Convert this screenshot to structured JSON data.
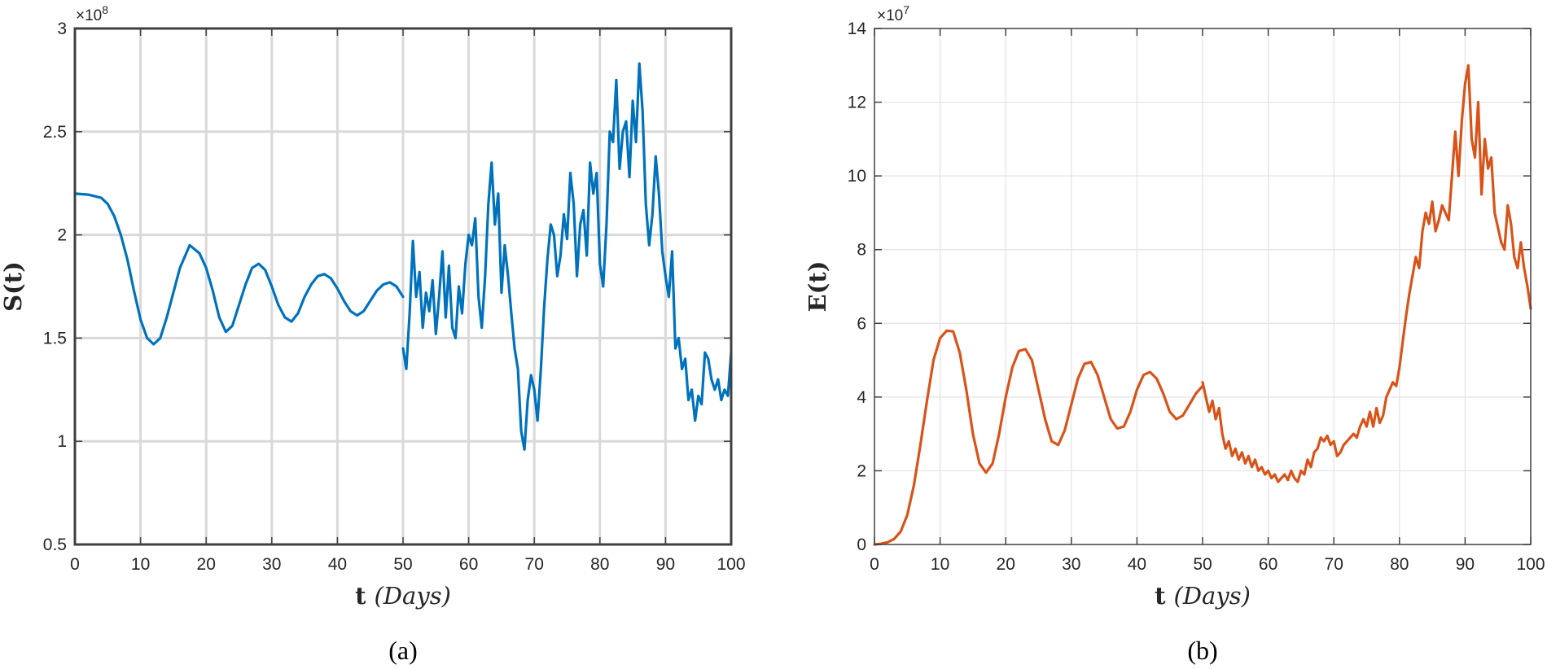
{
  "chart_data": [
    {
      "type": "line",
      "panel_label": "(a)",
      "xlabel_main": "t",
      "xlabel_unit": "(Days)",
      "ylabel": "S(t)",
      "exponent_base": "×10",
      "exponent_power": "8",
      "xlim": [
        0,
        100
      ],
      "ylim": [
        0.5,
        3
      ],
      "xticks": [
        0,
        10,
        20,
        30,
        40,
        50,
        60,
        70,
        80,
        90,
        100
      ],
      "yticks": [
        0.5,
        1,
        1.5,
        2,
        2.5,
        3
      ],
      "ytick_labels": [
        "0.5",
        "1",
        "1.5",
        "2",
        "2.5",
        "3"
      ],
      "grid": true,
      "color": "#0072BD",
      "series": [
        {
          "x": [
            0,
            2,
            4,
            5,
            6,
            7,
            8,
            9,
            10,
            11,
            12,
            13,
            14,
            15,
            16,
            17.5,
            19,
            20,
            21,
            22,
            23,
            24,
            25,
            26,
            27,
            28,
            29,
            30,
            31,
            32,
            33,
            34,
            35,
            36,
            37,
            38,
            39,
            40,
            41,
            42,
            43,
            44,
            45,
            46,
            47,
            48,
            49,
            50
          ],
          "y": [
            2.2,
            2.195,
            2.18,
            2.15,
            2.09,
            2.0,
            1.88,
            1.73,
            1.59,
            1.5,
            1.47,
            1.5,
            1.6,
            1.72,
            1.84,
            1.95,
            1.91,
            1.84,
            1.73,
            1.6,
            1.53,
            1.56,
            1.66,
            1.76,
            1.84,
            1.86,
            1.83,
            1.75,
            1.66,
            1.6,
            1.58,
            1.62,
            1.7,
            1.76,
            1.8,
            1.81,
            1.79,
            1.74,
            1.68,
            1.63,
            1.61,
            1.63,
            1.68,
            1.73,
            1.76,
            1.77,
            1.75,
            1.7
          ]
        },
        {
          "x": [
            50,
            50.5,
            51,
            51.5,
            52,
            52.5,
            53,
            53.5,
            54,
            54.5,
            55,
            55.5,
            56,
            56.5,
            57,
            57.5,
            58,
            58.5,
            59,
            59.5,
            60,
            60.5,
            61,
            61.5,
            62,
            62.5,
            63,
            63.5,
            64,
            64.5,
            65,
            65.5,
            66,
            66.5,
            67,
            67.5,
            68,
            68.5,
            69,
            69.5,
            70,
            70.5,
            71,
            71.5,
            72,
            72.5,
            73,
            73.5,
            74,
            74.5,
            75,
            75.5,
            76,
            76.5,
            77,
            77.5,
            78,
            78.5,
            79,
            79.5,
            80,
            80.5,
            81,
            81.5,
            82,
            82.5,
            83,
            83.5,
            84,
            84.5,
            85,
            85.5,
            86,
            86.5,
            87,
            87.5,
            88,
            88.5,
            89,
            89.5,
            90,
            90.5,
            91,
            91.5,
            92,
            92.5,
            93,
            93.5,
            94,
            94.5,
            95,
            95.5,
            96,
            96.5,
            97,
            97.5,
            98,
            98.5,
            99,
            99.5,
            100
          ],
          "y": [
            1.45,
            1.35,
            1.62,
            1.97,
            1.7,
            1.82,
            1.55,
            1.72,
            1.63,
            1.78,
            1.52,
            1.7,
            1.92,
            1.6,
            1.85,
            1.55,
            1.5,
            1.75,
            1.62,
            1.86,
            2.0,
            1.95,
            2.08,
            1.7,
            1.55,
            1.8,
            2.15,
            2.35,
            2.05,
            2.2,
            1.72,
            1.95,
            1.8,
            1.62,
            1.45,
            1.35,
            1.05,
            0.96,
            1.2,
            1.32,
            1.25,
            1.1,
            1.35,
            1.65,
            1.88,
            2.05,
            2.0,
            1.8,
            1.9,
            2.1,
            1.98,
            2.3,
            2.15,
            1.8,
            2.05,
            2.12,
            1.9,
            2.35,
            2.2,
            2.3,
            1.86,
            1.75,
            2.05,
            2.5,
            2.45,
            2.75,
            2.32,
            2.5,
            2.55,
            2.28,
            2.65,
            2.45,
            2.83,
            2.6,
            2.15,
            1.95,
            2.1,
            2.38,
            2.2,
            1.92,
            1.8,
            1.7,
            1.92,
            1.45,
            1.5,
            1.35,
            1.4,
            1.2,
            1.25,
            1.1,
            1.22,
            1.18,
            1.43,
            1.4,
            1.3,
            1.25,
            1.3,
            1.2,
            1.25,
            1.22,
            1.43
          ]
        }
      ]
    },
    {
      "type": "line",
      "panel_label": "(b)",
      "xlabel_main": "t",
      "xlabel_unit": "(Days)",
      "ylabel": "E(t)",
      "exponent_base": "×10",
      "exponent_power": "7",
      "xlim": [
        0,
        100
      ],
      "ylim": [
        0,
        14
      ],
      "xticks": [
        0,
        10,
        20,
        30,
        40,
        50,
        60,
        70,
        80,
        90,
        100
      ],
      "yticks": [
        0,
        2,
        4,
        6,
        8,
        10,
        12,
        14
      ],
      "ytick_labels": [
        "0",
        "2",
        "4",
        "6",
        "8",
        "10",
        "12",
        "14"
      ],
      "grid": true,
      "color": "#D95319",
      "series": [
        {
          "x": [
            0,
            1,
            2,
            3,
            4,
            5,
            6,
            7,
            8,
            9,
            10,
            11,
            12,
            13,
            14,
            15,
            16,
            17,
            18,
            19,
            20,
            21,
            22,
            23,
            24,
            25,
            26,
            27,
            28,
            29,
            30,
            31,
            32,
            33,
            34,
            35,
            36,
            37,
            38,
            39,
            40,
            41,
            42,
            43,
            44,
            45,
            46,
            47,
            48,
            49,
            50
          ],
          "y": [
            0,
            0.02,
            0.06,
            0.15,
            0.35,
            0.8,
            1.6,
            2.7,
            3.9,
            5.0,
            5.6,
            5.8,
            5.78,
            5.2,
            4.2,
            3.0,
            2.2,
            1.95,
            2.2,
            3.0,
            4.0,
            4.8,
            5.25,
            5.3,
            5.0,
            4.2,
            3.4,
            2.8,
            2.7,
            3.1,
            3.8,
            4.5,
            4.9,
            4.95,
            4.6,
            4.0,
            3.4,
            3.15,
            3.2,
            3.6,
            4.2,
            4.6,
            4.68,
            4.5,
            4.1,
            3.6,
            3.4,
            3.5,
            3.8,
            4.1,
            4.3
          ]
        },
        {
          "x": [
            50,
            50.5,
            51,
            51.5,
            52,
            52.5,
            53,
            53.5,
            54,
            54.5,
            55,
            55.5,
            56,
            56.5,
            57,
            57.5,
            58,
            58.5,
            59,
            59.5,
            60,
            60.5,
            61,
            61.5,
            62,
            62.5,
            63,
            63.5,
            64,
            64.5,
            65,
            65.5,
            66,
            66.5,
            67,
            67.5,
            68,
            68.5,
            69,
            69.5,
            70,
            70.5,
            71,
            71.5,
            72,
            72.5,
            73,
            73.5,
            74,
            74.5,
            75,
            75.5,
            76,
            76.5,
            77,
            77.5,
            78,
            78.5,
            79,
            79.5,
            80,
            80.5,
            81,
            81.5,
            82,
            82.5,
            83,
            83.5,
            84,
            84.5,
            85,
            85.5,
            86,
            86.5,
            87,
            87.5,
            88,
            88.5,
            89,
            89.5,
            90,
            90.5,
            91,
            91.5,
            92,
            92.5,
            93,
            93.5,
            94,
            94.5,
            95,
            95.5,
            96,
            96.5,
            97,
            97.5,
            98,
            98.5,
            99,
            99.5,
            100
          ],
          "y": [
            4.4,
            4.0,
            3.6,
            3.9,
            3.4,
            3.7,
            3.0,
            2.6,
            2.8,
            2.4,
            2.6,
            2.3,
            2.5,
            2.2,
            2.4,
            2.1,
            2.3,
            2.0,
            2.1,
            1.9,
            2.0,
            1.8,
            1.9,
            1.7,
            1.8,
            1.9,
            1.75,
            2.0,
            1.8,
            1.7,
            2.0,
            1.9,
            2.3,
            2.1,
            2.5,
            2.6,
            2.9,
            2.8,
            2.95,
            2.7,
            2.8,
            2.4,
            2.5,
            2.7,
            2.8,
            2.9,
            3.0,
            2.9,
            3.2,
            3.4,
            3.2,
            3.6,
            3.2,
            3.7,
            3.3,
            3.5,
            4.0,
            4.2,
            4.4,
            4.3,
            4.8,
            5.5,
            6.2,
            6.8,
            7.3,
            7.8,
            7.5,
            8.5,
            9.0,
            8.7,
            9.3,
            8.5,
            8.8,
            9.2,
            9.0,
            8.8,
            10.0,
            11.2,
            10.0,
            11.5,
            12.5,
            13.0,
            11.0,
            10.5,
            12.0,
            9.5,
            11.0,
            10.2,
            10.5,
            9.0,
            8.6,
            8.2,
            8.0,
            9.2,
            8.7,
            7.8,
            7.5,
            8.2,
            7.5,
            7.0,
            6.4
          ]
        }
      ]
    }
  ]
}
